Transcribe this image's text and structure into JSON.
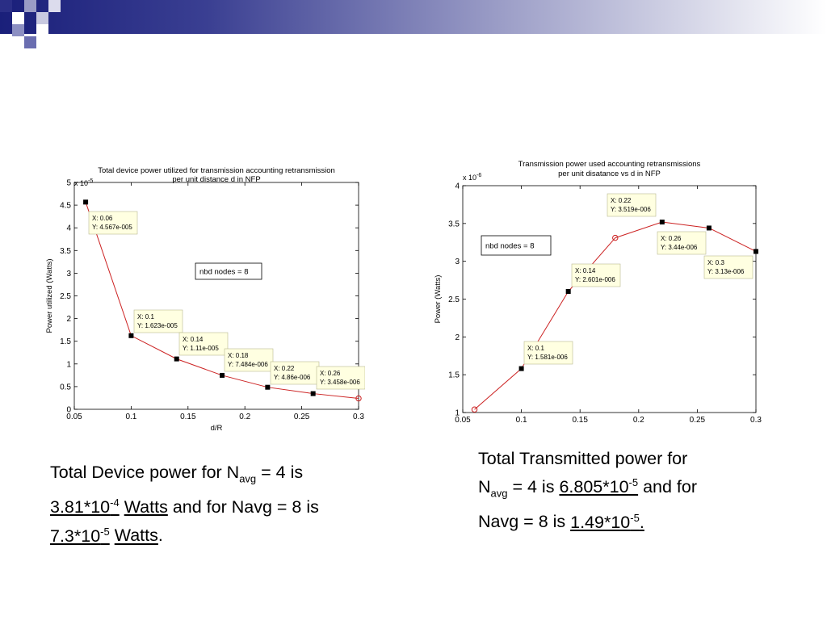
{
  "chart_data": [
    {
      "type": "line",
      "title_lines": [
        "Total device power utilized for transmission accounting retransmission",
        "per unit distance d in NFP"
      ],
      "xlabel": "d/R",
      "ylabel": "Power utilized (Watts)",
      "exponent_label": "x 10",
      "exponent_power": "-5",
      "xlim": [
        0.05,
        0.3
      ],
      "ylim": [
        0,
        5
      ],
      "xticks": [
        "0.05",
        "0.1",
        "0.15",
        "0.2",
        "0.25",
        "0.3"
      ],
      "yticks": [
        "0",
        "0.5",
        "1",
        "1.5",
        "2",
        "2.5",
        "3",
        "3.5",
        "4",
        "4.5",
        "5"
      ],
      "x": [
        0.06,
        0.1,
        0.14,
        0.18,
        0.22,
        0.26,
        0.3
      ],
      "y": [
        4.567,
        1.623,
        1.11,
        0.7484,
        0.486,
        0.3458,
        0.24
      ],
      "marker_types": [
        "square",
        "square",
        "square",
        "square",
        "square",
        "square",
        "circle"
      ],
      "legend_box": "nbd nodes = 8",
      "datatips": [
        {
          "x_label": "X: 0.06",
          "y_label": "Y: 4.567e-005"
        },
        {
          "x_label": "X: 0.1",
          "y_label": "Y: 1.623e-005"
        },
        {
          "x_label": "X: 0.14",
          "y_label": "Y: 1.11e-005"
        },
        {
          "x_label": "X: 0.18",
          "y_label": "Y: 7.484e-006"
        },
        {
          "x_label": "X: 0.22",
          "y_label": "Y: 4.86e-006"
        },
        {
          "x_label": "X: 0.26",
          "y_label": "Y: 3.458e-006"
        }
      ]
    },
    {
      "type": "line",
      "title_lines": [
        "Transmission power used accounting retransmissions",
        "per unit disatance vs d in NFP"
      ],
      "xlabel": "",
      "ylabel": "Power (Watts)",
      "exponent_label": "x 10",
      "exponent_power": "-6",
      "xlim": [
        0.05,
        0.3
      ],
      "ylim": [
        1,
        4
      ],
      "xticks": [
        "0.05",
        "0.1",
        "0.15",
        "0.2",
        "0.25",
        "0.3"
      ],
      "yticks": [
        "1",
        "1.5",
        "2",
        "2.5",
        "3",
        "3.5",
        "4"
      ],
      "x": [
        0.06,
        0.1,
        0.14,
        0.18,
        0.22,
        0.26,
        0.3
      ],
      "y": [
        1.04,
        1.581,
        2.601,
        3.31,
        3.519,
        3.44,
        3.13
      ],
      "marker_types": [
        "circle",
        "square",
        "square",
        "circle",
        "square",
        "square",
        "square"
      ],
      "legend_box": "nbd nodes = 8",
      "datatips": [
        {
          "x_label": "X: 0.1",
          "y_label": "Y: 1.581e-006"
        },
        {
          "x_label": "X: 0.14",
          "y_label": "Y: 2.601e-006"
        },
        {
          "x_label": "X: 0.22",
          "y_label": "Y: 3.519e-006"
        },
        {
          "x_label": "X: 0.26",
          "y_label": "Y: 3.44e-006"
        },
        {
          "x_label": "X: 0.3",
          "y_label": "Y: 3.13e-006"
        }
      ]
    }
  ],
  "captions": {
    "left": {
      "l1_a": "Total Device power for N",
      "l1_sub": "avg",
      "l1_b": " = 4 is",
      "l2_val": "3.81*10",
      "l2_sup": "-4",
      "l2_unit": "Watts",
      "l2_b": " and for Navg = 8 is",
      "l3_val": "7.3*10",
      "l3_sup": "-5",
      "l3_unit": "Watts",
      "l3_end": "."
    },
    "right": {
      "l1": "Total Transmitted power for",
      "l2_a": "N",
      "l2_sub": "avg",
      "l2_b": " = 4 is ",
      "l2_val": "6.805*10",
      "l2_sup": "-5",
      "l2_c": " and for",
      "l3_a": "Navg = 8 is ",
      "l3_val": "1.49*10",
      "l3_sup": "-5",
      "l3_end": "."
    }
  },
  "colors": {
    "line": "#cc2222",
    "marker": "#000000",
    "datatip_bg": "#ffffe1"
  }
}
